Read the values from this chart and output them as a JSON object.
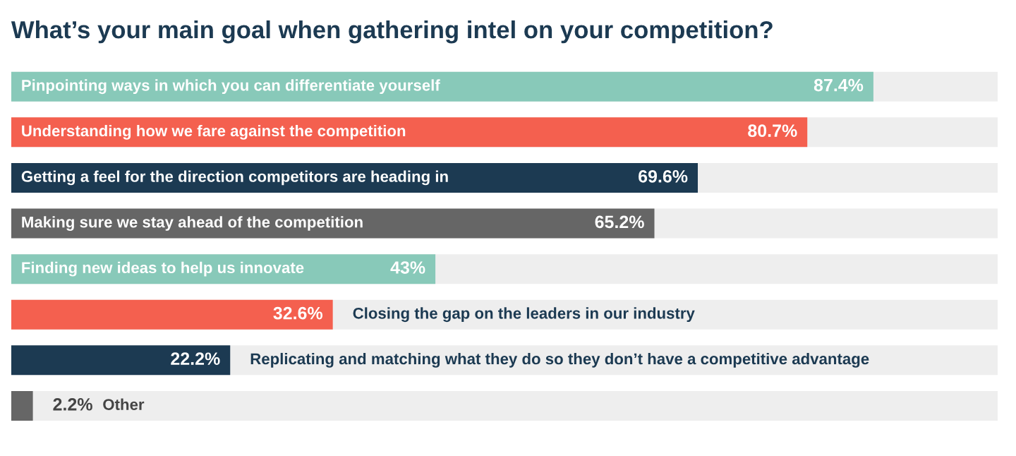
{
  "chart_data": {
    "type": "bar",
    "orientation": "horizontal",
    "title": "What’s your main goal when gathering intel on your competition?",
    "categories": [
      "Pinpointing ways in which you can differentiate yourself",
      "Understanding how we fare against the competition",
      "Getting a feel for the direction competitors are heading in",
      "Making sure we stay ahead of the competition",
      "Finding new ideas to help us innovate",
      "Closing the gap on the leaders in our industry",
      "Replicating and matching what they do so they don’t have a competitive advantage",
      "Other"
    ],
    "values": [
      87.4,
      80.7,
      69.6,
      65.2,
      43,
      32.6,
      22.2,
      2.2
    ],
    "value_labels": [
      "87.4%",
      "80.7%",
      "69.6%",
      "65.2%",
      "43%",
      "32.6%",
      "22.2%",
      "2.2%"
    ],
    "colors": [
      "#88c9b9",
      "#f4604f",
      "#1c3a52",
      "#666666",
      "#88c9b9",
      "#f4604f",
      "#1c3a52",
      "#666666"
    ],
    "xlim": [
      0,
      100
    ],
    "tick_labels": false,
    "grid": false,
    "legend": false
  }
}
